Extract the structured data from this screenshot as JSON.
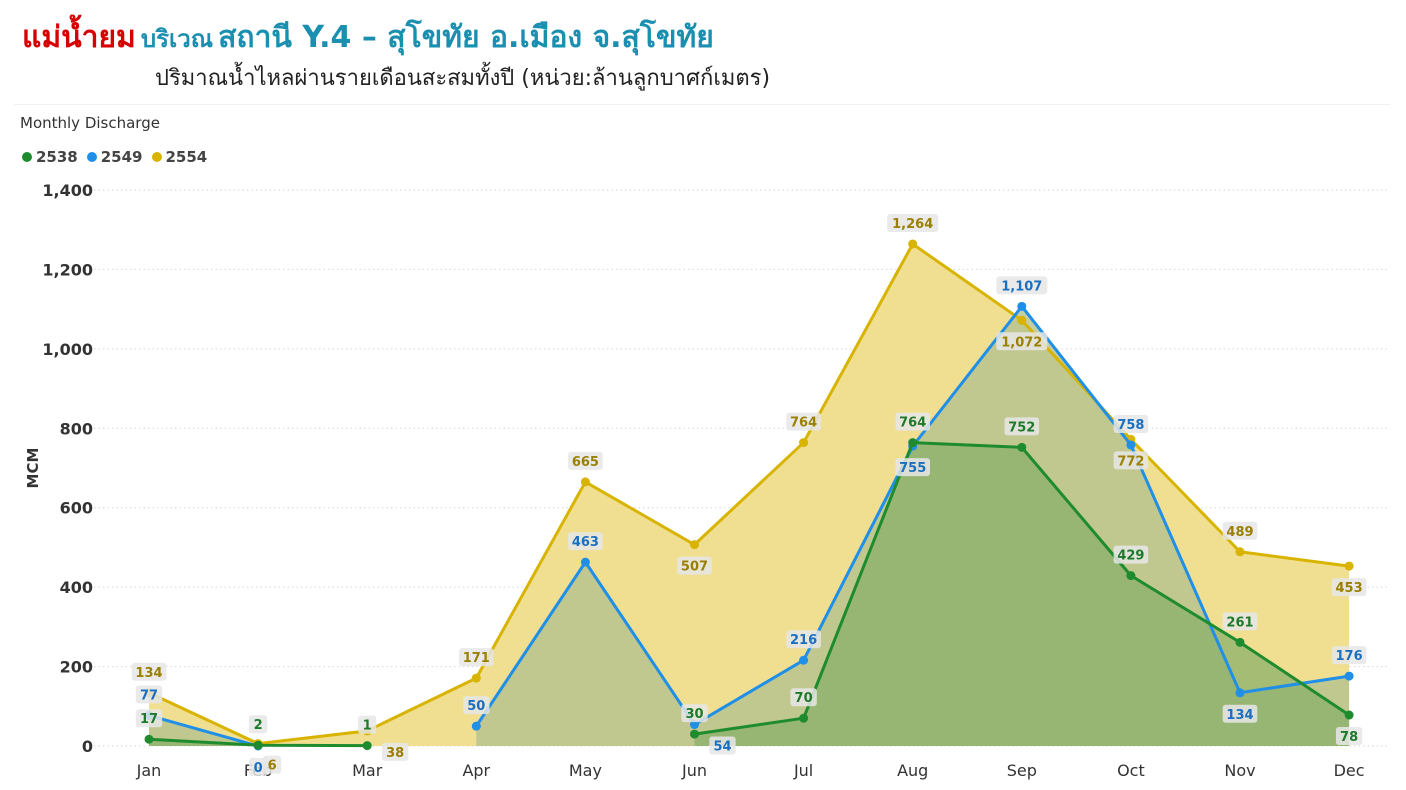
{
  "header": {
    "title_main": "แม่น้ำยม",
    "title_station_prefix": "บริเวณ",
    "title_station": "สถานี Y.4 – สุโขทัย อ.เมือง จ.สุโขทัย",
    "subtitle": "ปริมาณน้ำไหลผ่านรายเดือนสะสมทั้งปี (หน่วย:ล้านลูกบาศก์เมตร)"
  },
  "colors": {
    "s2538": "#1e8c2e",
    "s2549": "#1f8fe8",
    "s2554": "#d8b400",
    "fill2554": "#eedc85",
    "fill2549": "#b4c28f",
    "fill2538": "#8bb06a"
  },
  "chart_data": {
    "type": "area",
    "title": "Monthly Discharge",
    "xlabel": "",
    "ylabel": "MCM",
    "ylim": [
      0,
      1400
    ],
    "yticks": [
      0,
      200,
      400,
      600,
      800,
      1000,
      1200,
      1400
    ],
    "ytick_labels": [
      "0",
      "200",
      "400",
      "600",
      "800",
      "1,000",
      "1,200",
      "1,400"
    ],
    "grid": true,
    "legend_position": "top-left",
    "categories": [
      "Jan",
      "Feb",
      "Mar",
      "Apr",
      "May",
      "Jun",
      "Jul",
      "Aug",
      "Sep",
      "Oct",
      "Nov",
      "Dec"
    ],
    "series": [
      {
        "name": "2538",
        "values": [
          17,
          2,
          1,
          null,
          null,
          30,
          70,
          764,
          752,
          429,
          261,
          78
        ],
        "labels": [
          "17",
          "2",
          "1",
          "",
          "",
          "30",
          "70",
          "764",
          "752",
          "429",
          "261",
          "78"
        ]
      },
      {
        "name": "2549",
        "values": [
          77,
          0,
          null,
          50,
          463,
          54,
          216,
          755,
          1107,
          758,
          134,
          176
        ],
        "labels": [
          "77",
          "0",
          "",
          "50",
          "463",
          "54",
          "216",
          "755",
          "1,107",
          "758",
          "134",
          "176"
        ]
      },
      {
        "name": "2554",
        "values": [
          134,
          6,
          38,
          171,
          665,
          507,
          764,
          1264,
          1072,
          772,
          489,
          453
        ],
        "labels": [
          "134",
          "6",
          "38",
          "171",
          "665",
          "507",
          "764",
          "1,264",
          "1,072",
          "772",
          "489",
          "453"
        ]
      }
    ]
  }
}
